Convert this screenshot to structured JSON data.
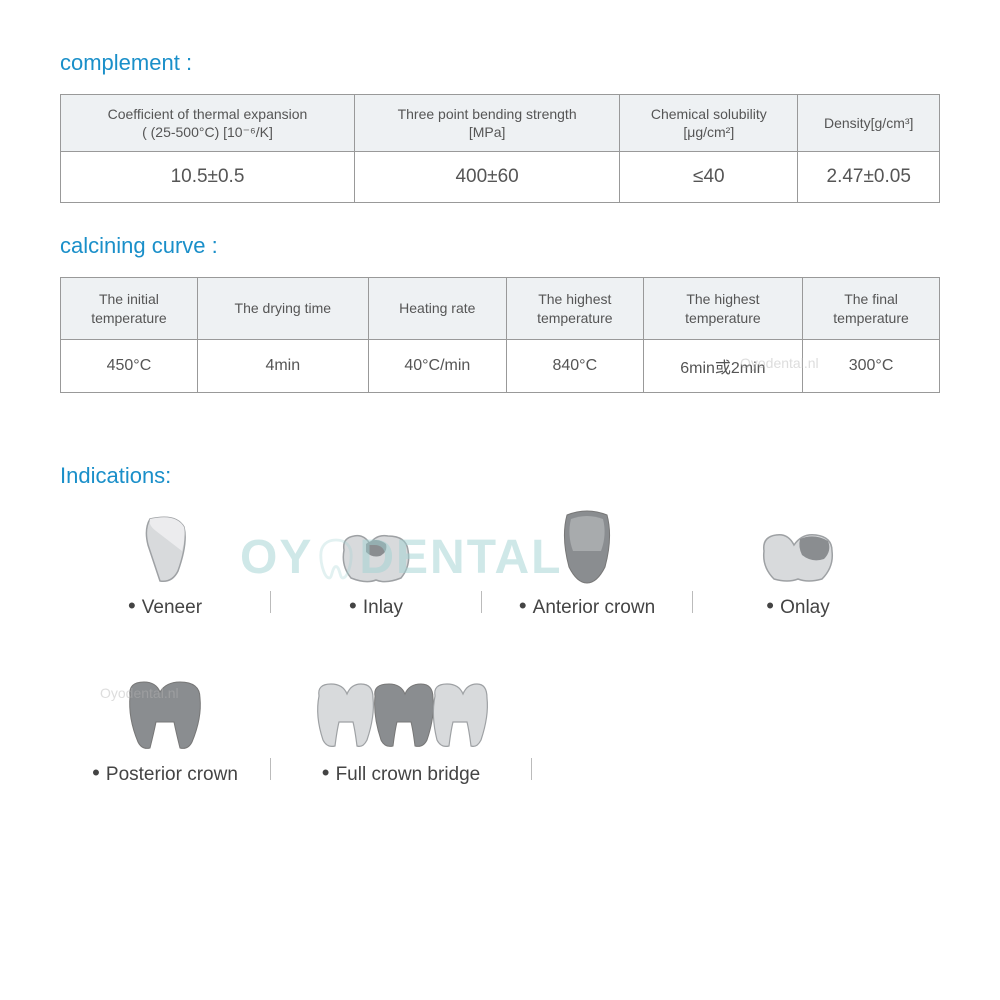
{
  "sections": {
    "complement_title": "complement :",
    "calcining_title": "calcining curve :",
    "indications_title": "Indications:"
  },
  "table1": {
    "headers": [
      "Coefficient of thermal expansion\n( (25-500°C) [10⁻⁶/K]",
      "Three point bending strength\n[MPa]",
      "Chemical solubility\n[μg/cm²]",
      "Density[g/cm³]"
    ],
    "row": [
      "10.5±0.5",
      "400±60",
      "≤40",
      "2.47±0.05"
    ],
    "header_bg": "#eef1f3",
    "border_color": "#999999",
    "text_color": "#555555"
  },
  "table2": {
    "headers": [
      "The initial\ntemperature",
      "The drying time",
      "Heating rate",
      "The highest\ntemperature",
      "The highest\ntemperature",
      "The final\ntemperature"
    ],
    "row": [
      "450°C",
      "4min",
      "40°C/min",
      "840°C",
      "6min或2min",
      "300°C"
    ],
    "header_bg": "#eef1f3",
    "border_color": "#999999",
    "text_color": "#555555"
  },
  "watermark": {
    "text_left": "OY",
    "text_right": "DENTAL",
    "color": "rgba(160,210,210,0.5)",
    "small_text": "Oyodental.nl"
  },
  "indications": {
    "row1": [
      {
        "label": "Veneer",
        "icon": "veneer"
      },
      {
        "label": "Inlay",
        "icon": "inlay"
      },
      {
        "label": "Anterior crown",
        "icon": "anterior"
      },
      {
        "label": "Onlay",
        "icon": "onlay"
      }
    ],
    "row2": [
      {
        "label": "Posterior crown",
        "icon": "posterior"
      },
      {
        "label": "Full crown bridge",
        "icon": "bridge"
      }
    ],
    "icon_fill_light": "#d8dadc",
    "icon_fill_dark": "#8a8d90",
    "icon_stroke": "#9ea1a4"
  },
  "colors": {
    "title_color": "#1a8fc9",
    "background": "#ffffff"
  }
}
